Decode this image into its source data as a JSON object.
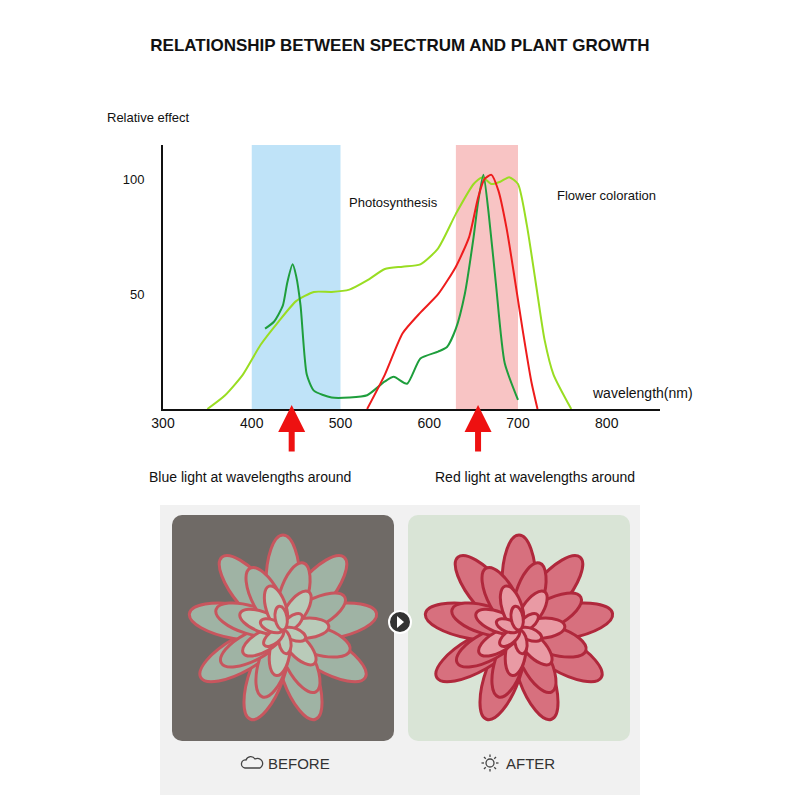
{
  "chart_data": {
    "type": "line",
    "title": "RELATIONSHIP BETWEEN SPECTRUM AND PLANT GROWTH",
    "ylabel": "Relative effect",
    "xlabel": "wavelength(nm)",
    "xlim": [
      300,
      860
    ],
    "xticks": [
      300,
      400,
      500,
      600,
      700,
      800
    ],
    "ylim": [
      0,
      115
    ],
    "yticks": [
      50,
      100
    ],
    "grid": false,
    "series": [
      {
        "color": "#99dd22",
        "x": [
          350,
          370,
          390,
          410,
          430,
          450,
          470,
          490,
          510,
          530,
          550,
          570,
          590,
          610,
          630,
          650,
          660,
          670,
          680,
          690,
          700,
          710,
          720,
          730,
          740,
          760
        ],
        "values": [
          0,
          6,
          15,
          28,
          38,
          47,
          51,
          51,
          52,
          56,
          61,
          62,
          63,
          70,
          85,
          98,
          101,
          98,
          99,
          101,
          98,
          80,
          55,
          30,
          15,
          0
        ]
      },
      {
        "color": "#1e9e3c",
        "x": [
          415,
          425,
          435,
          440,
          446,
          450,
          455,
          462,
          470,
          490,
          510,
          530,
          550,
          560,
          575,
          590,
          610,
          620,
          630,
          640,
          650,
          655,
          661,
          667,
          675,
          685,
          700
        ],
        "values": [
          35,
          38,
          45,
          55,
          63,
          58,
          45,
          15,
          8,
          5,
          5,
          6,
          12,
          14,
          11,
          22,
          25,
          27,
          35,
          50,
          75,
          90,
          102,
          85,
          55,
          20,
          4
        ]
      },
      {
        "color": "#ee1c1c",
        "x": [
          530,
          550,
          570,
          590,
          610,
          630,
          645,
          655,
          662,
          670,
          678,
          687,
          695,
          705,
          715,
          722
        ],
        "values": [
          0,
          15,
          33,
          42,
          50,
          62,
          75,
          92,
          100,
          102,
          95,
          79,
          60,
          35,
          12,
          0
        ]
      }
    ],
    "bands": [
      {
        "x0": 400,
        "x1": 500,
        "color": "#bfe3f8"
      },
      {
        "x0": 630,
        "x1": 700,
        "color": "#f8c4c4"
      }
    ],
    "notes": [
      {
        "text": "Photosynthesis",
        "x": 560,
        "y": 90
      },
      {
        "text": "Flower coloration",
        "x": 800,
        "y": 93
      }
    ],
    "arrows": [
      {
        "x": 445,
        "label_x": 398,
        "text": "Blue light at wavelengths around",
        "color": "#ee1111"
      },
      {
        "x": 655,
        "label_x": 719,
        "text": "Red light at wavelengths around",
        "color": "#ee1111"
      }
    ]
  },
  "photos": [
    {
      "label": "BEFORE"
    },
    {
      "label": "AFTER"
    }
  ]
}
